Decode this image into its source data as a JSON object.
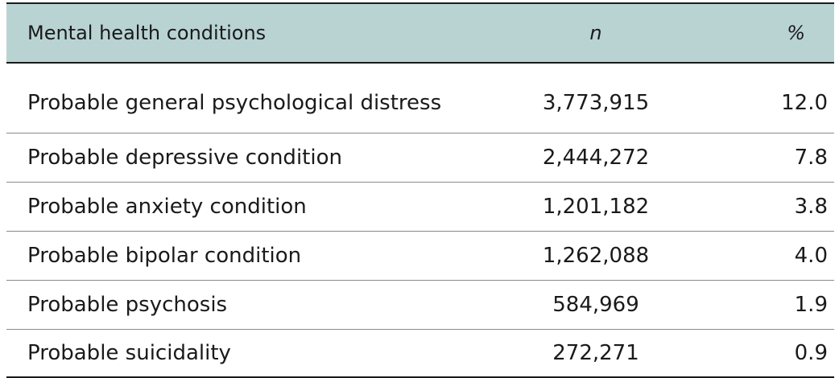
{
  "table": {
    "headers": {
      "condition": "Mental health conditions",
      "n": "n",
      "percent": "%"
    },
    "rows": [
      {
        "condition": "Probable general psychological distress",
        "n": "3,773,915",
        "percent": "12.0"
      },
      {
        "condition": "Probable depressive condition",
        "n": "2,444,272",
        "percent": "7.8"
      },
      {
        "condition": "Probable anxiety condition",
        "n": "1,201,182",
        "percent": "3.8"
      },
      {
        "condition": "Probable bipolar condition",
        "n": "1,262,088",
        "percent": "4.0"
      },
      {
        "condition": "Probable psychosis",
        "n": "584,969",
        "percent": "1.9"
      },
      {
        "condition": "Probable suicidality",
        "n": "272,271",
        "percent": "0.9"
      }
    ]
  },
  "colors": {
    "header_background": "#b9d3d3",
    "rule": "#1a1a1a",
    "row_divider": "#8a8a8a"
  }
}
